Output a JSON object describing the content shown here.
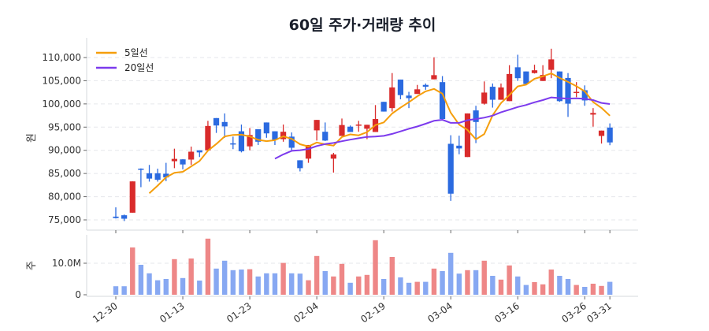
{
  "chart_data": [
    {
      "type": "candlestick",
      "title": "60일 주가·거래량 추이",
      "ylabel": "원",
      "ylim": [
        73000,
        113000
      ],
      "y_ticks": [
        75000,
        80000,
        85000,
        90000,
        95000,
        100000,
        105000,
        110000
      ],
      "y_tick_labels": [
        "75,000",
        "80,000",
        "85,000",
        "90,000",
        "95,000",
        "100,000",
        "105,000",
        "110,000"
      ],
      "grid": true,
      "legend": {
        "placement": "top-left",
        "entries": [
          "5일선",
          "20일선"
        ]
      },
      "colors": {
        "up": "#d92b2b",
        "down": "#2b6ae0",
        "ma5": "#f59e0b",
        "ma20": "#7c3aed",
        "grid": "#e5e7eb"
      },
      "x_tick_labels": [
        {
          "index": 0,
          "label": "12-30"
        },
        {
          "index": 8,
          "label": "01-13"
        },
        {
          "index": 16,
          "label": "01-23"
        },
        {
          "index": 24,
          "label": "02-04"
        },
        {
          "index": 32,
          "label": "02-19"
        },
        {
          "index": 40,
          "label": "03-04"
        },
        {
          "index": 48,
          "label": "03-16"
        },
        {
          "index": 56,
          "label": "03-26"
        },
        {
          "index": 59,
          "label": "03-31"
        }
      ],
      "ohlc_columns": [
        "open",
        "high",
        "low",
        "close"
      ],
      "ohlc": [
        [
          75700,
          77700,
          75300,
          75400
        ],
        [
          76000,
          76150,
          74750,
          75250
        ],
        [
          76550,
          83300,
          76550,
          83300
        ],
        [
          86050,
          86100,
          82050,
          85900
        ],
        [
          85050,
          86850,
          83250,
          83900
        ],
        [
          85050,
          86050,
          83250,
          83650
        ],
        [
          84950,
          87300,
          83350,
          84150
        ],
        [
          87650,
          90350,
          86150,
          88150
        ],
        [
          88050,
          88100,
          85900,
          86950
        ],
        [
          88000,
          90800,
          86850,
          89700
        ],
        [
          90000,
          90000,
          88550,
          89550
        ],
        [
          90000,
          96350,
          90000,
          95250
        ],
        [
          96950,
          96950,
          93750,
          95350
        ],
        [
          96100,
          97950,
          92700,
          95150
        ],
        [
          91500,
          92950,
          90250,
          91250
        ],
        [
          94100,
          95550,
          89550,
          89800
        ],
        [
          90850,
          94800,
          90000,
          93300
        ],
        [
          94550,
          94550,
          91150,
          91850
        ],
        [
          96000,
          96000,
          92700,
          93650
        ],
        [
          94100,
          94100,
          91150,
          92250
        ],
        [
          92400,
          95550,
          91850,
          94000
        ],
        [
          92950,
          93850,
          90000,
          90550
        ],
        [
          87850,
          87850,
          85450,
          86150
        ],
        [
          88200,
          91150,
          87300,
          91150
        ],
        [
          94300,
          96550,
          92100,
          96550
        ],
        [
          94000,
          96000,
          92000,
          92100
        ],
        [
          88200,
          89450,
          85200,
          89100
        ],
        [
          93100,
          96850,
          93100,
          95450
        ],
        [
          95100,
          95350,
          93950,
          93950
        ],
        [
          95450,
          96350,
          94000,
          95550
        ],
        [
          94650,
          95500,
          92400,
          95500
        ],
        [
          93950,
          99750,
          93950,
          96750
        ],
        [
          100450,
          100450,
          98350,
          98350
        ],
        [
          99100,
          106650,
          98350,
          103550
        ],
        [
          105250,
          105250,
          101000,
          101900
        ],
        [
          101800,
          102600,
          99100,
          101250
        ],
        [
          102150,
          104100,
          102150,
          103150
        ],
        [
          104100,
          104400,
          103050,
          103700
        ],
        [
          105300,
          110050,
          105300,
          106200
        ],
        [
          104700,
          106000,
          96750,
          96750
        ],
        [
          91400,
          93250,
          79100,
          80650
        ],
        [
          91000,
          93150,
          89150,
          90400
        ],
        [
          88550,
          97950,
          88550,
          97950
        ],
        [
          98600,
          99600,
          91550,
          96100
        ],
        [
          100050,
          104850,
          99850,
          102450
        ],
        [
          103700,
          104400,
          99200,
          100900
        ],
        [
          100900,
          104400,
          100900,
          103550
        ],
        [
          100600,
          108350,
          100600,
          106450
        ],
        [
          107900,
          110600,
          104950,
          105550
        ],
        [
          107000,
          107000,
          104300,
          104300
        ],
        [
          106650,
          108450,
          106550,
          107250
        ],
        [
          104950,
          108350,
          104950,
          106250
        ],
        [
          107350,
          111900,
          105550,
          109600
        ],
        [
          107000,
          107000,
          100450,
          100600
        ],
        [
          105600,
          106650,
          97200,
          100050
        ],
        [
          102350,
          104700,
          101450,
          102600
        ],
        [
          102950,
          104000,
          99600,
          100750
        ],
        [
          97700,
          99100,
          95100,
          98050
        ],
        [
          93100,
          94250,
          91450,
          94250
        ],
        [
          94900,
          95800,
          91100,
          91700
        ]
      ]
    },
    {
      "type": "bar",
      "ylabel": "주",
      "ylim": [
        0,
        19000000
      ],
      "y_ticks": [
        0,
        10000000
      ],
      "y_tick_labels": [
        "0",
        "10.0M"
      ],
      "colors": {
        "up": "#ee8787",
        "down": "#87a8f2"
      },
      "volume": [
        2.7,
        2.7,
        15.0,
        9.5,
        6.8,
        4.6,
        5.0,
        11.3,
        5.3,
        11.5,
        4.5,
        17.8,
        8.3,
        10.8,
        7.8,
        8.0,
        8.1,
        5.8,
        6.8,
        6.8,
        10.1,
        6.8,
        6.7,
        4.6,
        12.3,
        7.5,
        5.8,
        9.8,
        3.8,
        5.8,
        6.3,
        17.3,
        5.0,
        12.0,
        5.5,
        3.8,
        4.1,
        4.1,
        8.3,
        7.5,
        13.3,
        6.7,
        7.8,
        7.8,
        10.8,
        6.0,
        4.8,
        9.3,
        5.8,
        3.1,
        4.0,
        3.3,
        8.0,
        6.0,
        5.0,
        3.1,
        2.5,
        3.5,
        2.8,
        4.1
      ],
      "volume_unit": "million shares"
    }
  ]
}
